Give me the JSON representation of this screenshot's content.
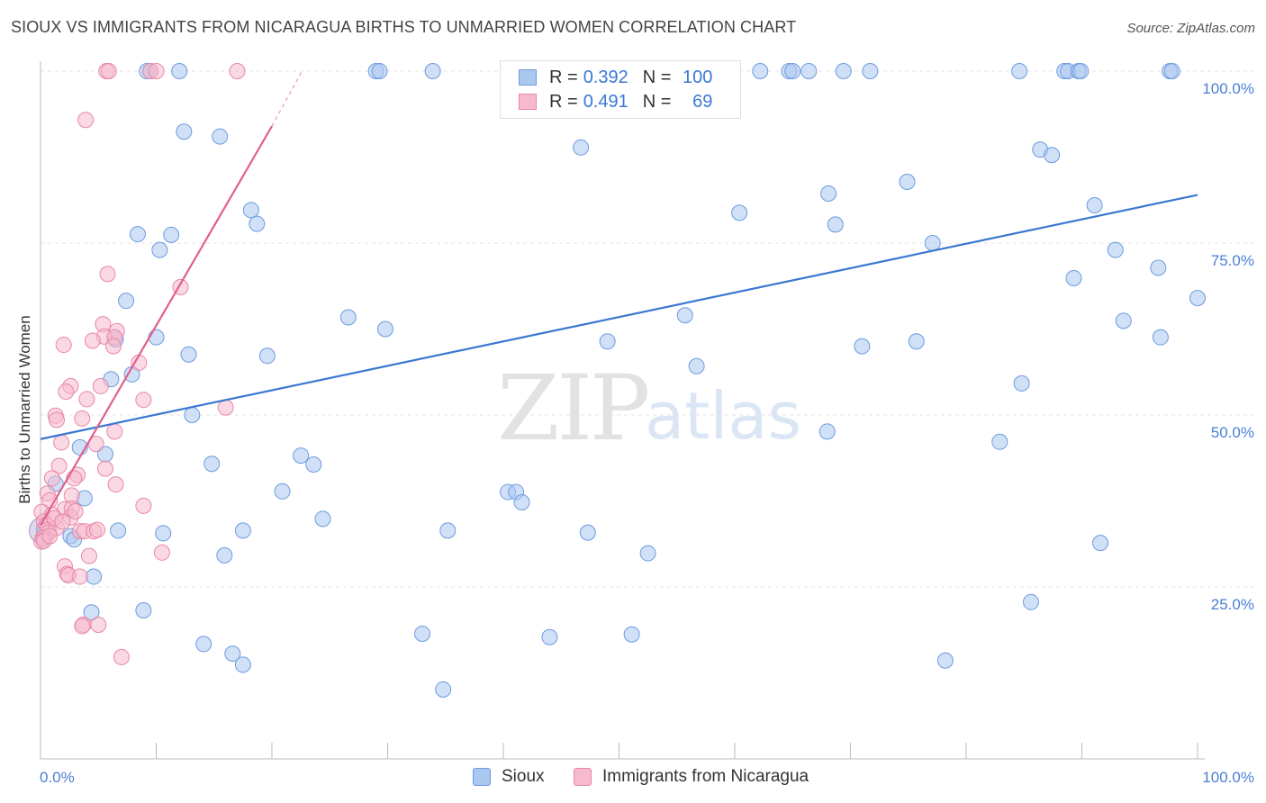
{
  "header": {
    "title": "SIOUX VS IMMIGRANTS FROM NICARAGUA BIRTHS TO UNMARRIED WOMEN CORRELATION CHART",
    "source": "Source: ZipAtlas.com"
  },
  "watermark": {
    "zip": "ZIP",
    "atlas": "atlas"
  },
  "legend": {
    "r_label": "R =",
    "n_label": "N =",
    "rows": [
      {
        "r": "0.392",
        "n": "100",
        "color": "#a9c7ef",
        "border": "#6d9be0"
      },
      {
        "r": "0.491",
        "n": "69",
        "color": "#f6b9cd",
        "border": "#e887a6"
      }
    ]
  },
  "bottom_legend": [
    {
      "label": "Sioux",
      "color": "#a9c7ef",
      "border": "#6d9be0"
    },
    {
      "label": "Immigrants from Nicaragua",
      "color": "#f6b9cd",
      "border": "#e887a6"
    }
  ],
  "chart_data": {
    "type": "scatter",
    "title": "SIOUX VS IMMIGRANTS FROM NICARAGUA BIRTHS TO UNMARRIED WOMEN CORRELATION CHART",
    "xlabel": "",
    "ylabel": "Births to Unmarried Women",
    "xlim": [
      0,
      100
    ],
    "ylim": [
      0,
      100
    ],
    "x_tick_labels": [
      {
        "value": 0,
        "label": "0.0%"
      },
      {
        "value": 100,
        "label": "100.0%"
      }
    ],
    "y_tick_labels": [
      {
        "value": 25,
        "label": "25.0%"
      },
      {
        "value": 50,
        "label": "50.0%"
      },
      {
        "value": 75,
        "label": "75.0%"
      },
      {
        "value": 100,
        "label": "100.0%"
      }
    ],
    "series": [
      {
        "name": "Sioux",
        "color": "#a9c7ef",
        "stroke": "#6d9be0",
        "line_color": "#3a78d2",
        "trend": {
          "x0": 0,
          "y0": 46.5,
          "x1": 100,
          "y1": 82
        },
        "points": [
          [
            9.2,
            100
          ],
          [
            9.5,
            100
          ],
          [
            12.0,
            100
          ],
          [
            29.0,
            100
          ],
          [
            29.3,
            100
          ],
          [
            33.9,
            100
          ],
          [
            43.5,
            100
          ],
          [
            59.0,
            100
          ],
          [
            62.2,
            100
          ],
          [
            64.7,
            100
          ],
          [
            65.0,
            100
          ],
          [
            66.4,
            100
          ],
          [
            69.4,
            100
          ],
          [
            71.7,
            100
          ],
          [
            84.6,
            100
          ],
          [
            88.5,
            100
          ],
          [
            88.8,
            100
          ],
          [
            89.7,
            100
          ],
          [
            89.9,
            100
          ],
          [
            97.6,
            100
          ],
          [
            97.8,
            100
          ],
          [
            12.4,
            91.2
          ],
          [
            15.5,
            90.5
          ],
          [
            46.7,
            88.9
          ],
          [
            86.4,
            88.6
          ],
          [
            87.4,
            87.8
          ],
          [
            74.9,
            83.9
          ],
          [
            68.1,
            82.2
          ],
          [
            91.1,
            80.5
          ],
          [
            18.2,
            79.8
          ],
          [
            60.4,
            79.4
          ],
          [
            18.7,
            77.8
          ],
          [
            68.7,
            77.7
          ],
          [
            8.4,
            76.3
          ],
          [
            11.3,
            76.2
          ],
          [
            10.3,
            74.0
          ],
          [
            77.1,
            75.0
          ],
          [
            92.9,
            74.0
          ],
          [
            96.6,
            71.4
          ],
          [
            89.3,
            69.9
          ],
          [
            7.4,
            66.6
          ],
          [
            100.0,
            67.0
          ],
          [
            26.6,
            64.2
          ],
          [
            55.7,
            64.5
          ],
          [
            29.8,
            62.5
          ],
          [
            93.6,
            63.7
          ],
          [
            96.8,
            61.3
          ],
          [
            6.5,
            61.0
          ],
          [
            10.0,
            61.3
          ],
          [
            49.0,
            60.7
          ],
          [
            71.0,
            60.0
          ],
          [
            75.7,
            60.7
          ],
          [
            12.8,
            58.8
          ],
          [
            19.6,
            58.6
          ],
          [
            56.7,
            57.1
          ],
          [
            6.1,
            55.2
          ],
          [
            7.9,
            55.9
          ],
          [
            84.8,
            54.6
          ],
          [
            13.1,
            50.0
          ],
          [
            68.0,
            47.6
          ],
          [
            82.9,
            46.1
          ],
          [
            3.4,
            45.3
          ],
          [
            5.6,
            44.3
          ],
          [
            22.5,
            44.1
          ],
          [
            14.8,
            42.9
          ],
          [
            23.6,
            42.8
          ],
          [
            1.3,
            40.0
          ],
          [
            20.9,
            38.9
          ],
          [
            40.4,
            38.8
          ],
          [
            41.1,
            38.8
          ],
          [
            41.6,
            37.3
          ],
          [
            3.8,
            37.9
          ],
          [
            24.4,
            34.9
          ],
          [
            0.3,
            33.2
          ],
          [
            6.7,
            33.2
          ],
          [
            10.6,
            32.8
          ],
          [
            17.5,
            33.2
          ],
          [
            35.2,
            33.2
          ],
          [
            47.3,
            32.9
          ],
          [
            2.6,
            32.4
          ],
          [
            2.9,
            31.9
          ],
          [
            91.6,
            31.4
          ],
          [
            15.9,
            29.6
          ],
          [
            52.5,
            29.9
          ],
          [
            4.6,
            26.5
          ],
          [
            85.6,
            22.8
          ],
          [
            4.4,
            21.3
          ],
          [
            8.9,
            21.6
          ],
          [
            33.0,
            18.2
          ],
          [
            44.0,
            17.7
          ],
          [
            51.1,
            18.1
          ],
          [
            14.1,
            16.7
          ],
          [
            16.6,
            15.3
          ],
          [
            17.5,
            13.7
          ],
          [
            78.2,
            14.3
          ],
          [
            34.8,
            10.1
          ],
          [
            0.3,
            33.5
          ],
          [
            0.5,
            34.0
          ],
          [
            0.6,
            33.0
          ],
          [
            0.2,
            32.0
          ]
        ]
      },
      {
        "name": "Immigrants from Nicaragua",
        "color": "#f6b9cd",
        "stroke": "#e887a6",
        "line_color": "#e0608c",
        "trend": {
          "x0": 0,
          "y0": 34,
          "x1": 20,
          "y1": 92
        },
        "trend_dashed": {
          "x0": 20,
          "y0": 92,
          "x1": 22.6,
          "y1": 100
        },
        "points": [
          [
            5.7,
            100
          ],
          [
            5.9,
            100
          ],
          [
            9.5,
            100
          ],
          [
            10.0,
            100
          ],
          [
            17.0,
            100
          ],
          [
            3.9,
            92.9
          ],
          [
            5.8,
            70.5
          ],
          [
            12.1,
            68.6
          ],
          [
            5.4,
            63.2
          ],
          [
            6.6,
            62.2
          ],
          [
            5.5,
            61.4
          ],
          [
            6.4,
            61.3
          ],
          [
            2.0,
            60.2
          ],
          [
            4.5,
            60.8
          ],
          [
            6.3,
            60.0
          ],
          [
            8.5,
            57.6
          ],
          [
            5.2,
            54.2
          ],
          [
            2.6,
            54.2
          ],
          [
            2.2,
            53.4
          ],
          [
            4.0,
            52.3
          ],
          [
            8.9,
            52.2
          ],
          [
            16.0,
            51.1
          ],
          [
            1.3,
            49.9
          ],
          [
            3.6,
            49.5
          ],
          [
            1.4,
            49.3
          ],
          [
            6.4,
            47.6
          ],
          [
            1.8,
            46.0
          ],
          [
            4.8,
            45.8
          ],
          [
            1.6,
            42.6
          ],
          [
            5.6,
            42.2
          ],
          [
            3.2,
            41.3
          ],
          [
            2.9,
            40.8
          ],
          [
            1.0,
            40.8
          ],
          [
            6.5,
            39.9
          ],
          [
            0.6,
            38.6
          ],
          [
            2.7,
            38.3
          ],
          [
            0.8,
            37.6
          ],
          [
            8.9,
            36.8
          ],
          [
            2.1,
            36.3
          ],
          [
            2.7,
            36.4
          ],
          [
            0.1,
            35.9
          ],
          [
            1.0,
            35.5
          ],
          [
            2.6,
            35.1
          ],
          [
            0.3,
            34.5
          ],
          [
            0.5,
            34.0
          ],
          [
            0.6,
            33.3
          ],
          [
            0.7,
            32.9
          ],
          [
            1.4,
            33.6
          ],
          [
            3.4,
            33.1
          ],
          [
            3.8,
            33.1
          ],
          [
            4.6,
            33.1
          ],
          [
            4.9,
            33.3
          ],
          [
            0.2,
            32.1
          ],
          [
            0.1,
            31.6
          ],
          [
            0.3,
            31.7
          ],
          [
            0.8,
            32.4
          ],
          [
            10.5,
            30.0
          ],
          [
            4.2,
            29.5
          ],
          [
            2.1,
            28.0
          ],
          [
            2.3,
            26.9
          ],
          [
            2.4,
            26.7
          ],
          [
            3.4,
            26.5
          ],
          [
            3.7,
            19.5
          ],
          [
            3.6,
            19.3
          ],
          [
            5.0,
            19.5
          ],
          [
            7.0,
            14.8
          ],
          [
            1.2,
            35.0
          ],
          [
            3.0,
            36.0
          ],
          [
            1.9,
            34.5
          ]
        ]
      }
    ]
  }
}
